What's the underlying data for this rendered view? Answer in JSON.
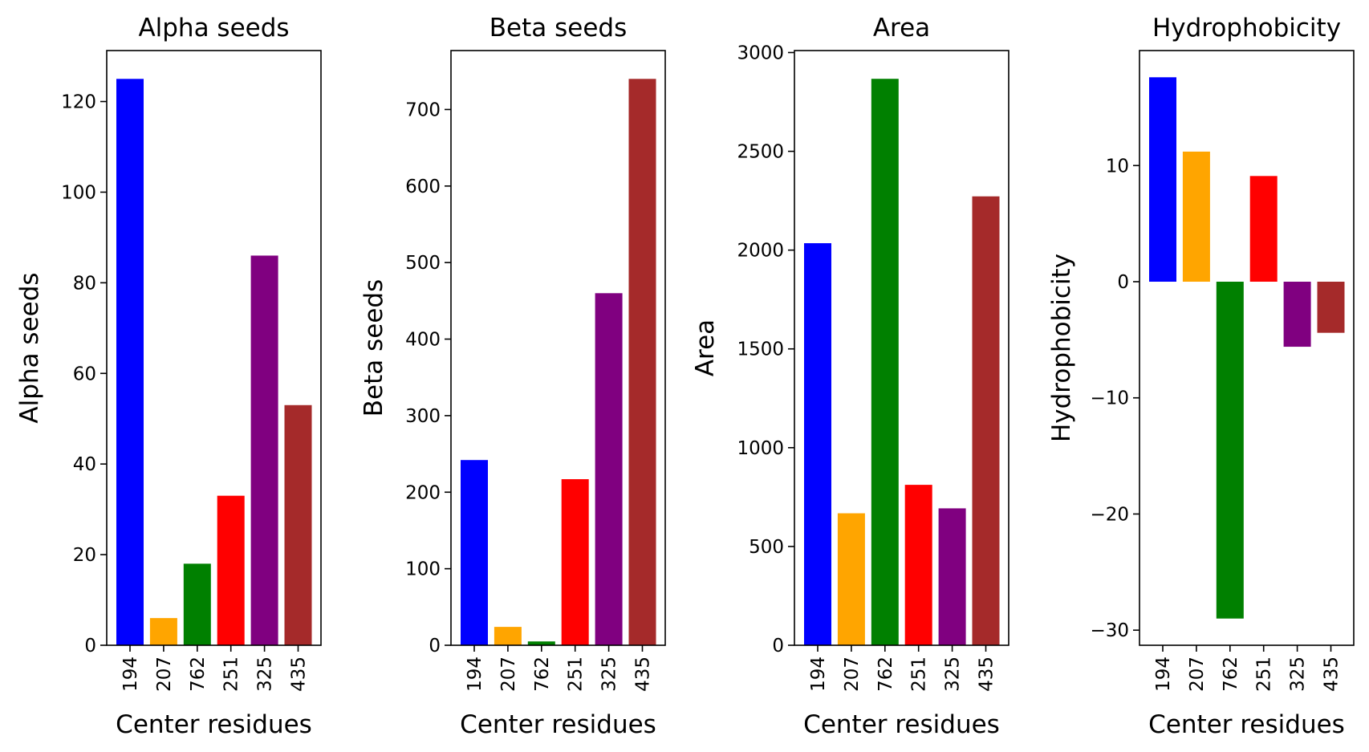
{
  "chart_data": [
    {
      "type": "bar",
      "title": "Alpha seeds",
      "xlabel": "Center residues",
      "ylabel": "Alpha seeds",
      "categories": [
        "194",
        "207",
        "762",
        "251",
        "325",
        "435"
      ],
      "values": [
        125,
        6,
        18,
        33,
        86,
        53
      ],
      "colors": [
        "#0000ff",
        "#ffa500",
        "#008000",
        "#ff0000",
        "#800080",
        "#a52a2a"
      ],
      "ylim": [
        0,
        131.25
      ],
      "yticks": [
        0,
        20,
        40,
        60,
        80,
        100,
        120
      ]
    },
    {
      "type": "bar",
      "title": "Beta seeds",
      "xlabel": "Center residues",
      "ylabel": "Beta seeds",
      "categories": [
        "194",
        "207",
        "762",
        "251",
        "325",
        "435"
      ],
      "values": [
        242,
        24,
        5,
        217,
        460,
        740
      ],
      "colors": [
        "#0000ff",
        "#ffa500",
        "#008000",
        "#ff0000",
        "#800080",
        "#a52a2a"
      ],
      "ylim": [
        0,
        777
      ],
      "yticks": [
        0,
        100,
        200,
        300,
        400,
        500,
        600,
        700
      ]
    },
    {
      "type": "bar",
      "title": "Area",
      "xlabel": "Center residues",
      "ylabel": "Area",
      "categories": [
        "194",
        "207",
        "762",
        "251",
        "325",
        "435"
      ],
      "values": [
        2035,
        668,
        2867,
        812,
        693,
        2272
      ],
      "colors": [
        "#0000ff",
        "#ffa500",
        "#008000",
        "#ff0000",
        "#800080",
        "#a52a2a"
      ],
      "ylim": [
        0,
        3010
      ],
      "yticks": [
        0,
        500,
        1000,
        1500,
        2000,
        2500,
        3000
      ]
    },
    {
      "type": "bar",
      "title": "Hydrophobicity",
      "xlabel": "Center residues",
      "ylabel": "Hydrophobicity",
      "categories": [
        "194",
        "207",
        "762",
        "251",
        "325",
        "435"
      ],
      "values": [
        17.6,
        11.2,
        -29,
        9.1,
        -5.6,
        -4.4
      ],
      "colors": [
        "#0000ff",
        "#ffa500",
        "#008000",
        "#ff0000",
        "#800080",
        "#a52a2a"
      ],
      "ylim": [
        -31.3,
        19.9
      ],
      "yticks": [
        -30,
        -20,
        -10,
        0,
        10
      ]
    }
  ]
}
